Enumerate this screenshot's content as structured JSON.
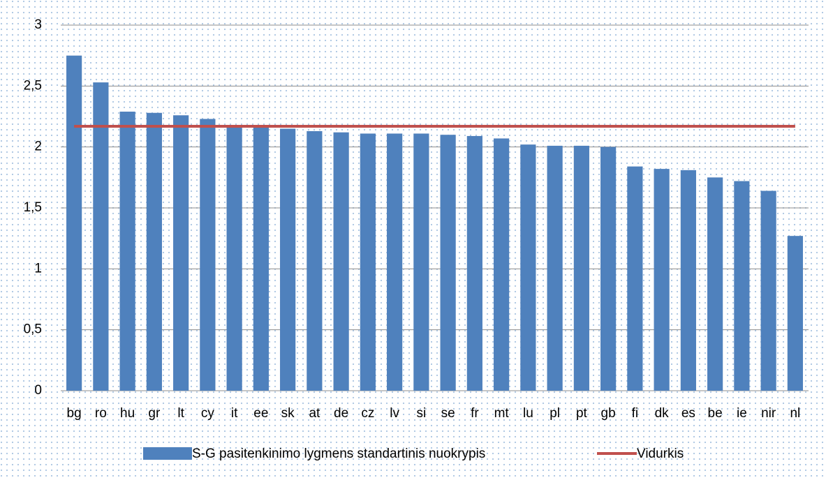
{
  "chart_data": {
    "type": "bar",
    "categories": [
      "bg",
      "ro",
      "hu",
      "gr",
      "lt",
      "cy",
      "it",
      "ee",
      "sk",
      "at",
      "de",
      "cz",
      "lv",
      "si",
      "se",
      "fr",
      "mt",
      "lu",
      "pl",
      "pt",
      "gb",
      "fi",
      "dk",
      "es",
      "be",
      "ie",
      "nir",
      "nl"
    ],
    "series": [
      {
        "name": "S-G pasitenkinimo lygmens standartinis nuokrypis",
        "type": "bar",
        "color": "#4f81bd",
        "values": [
          2.75,
          2.53,
          2.29,
          2.28,
          2.26,
          2.23,
          2.18,
          2.17,
          2.15,
          2.13,
          2.12,
          2.11,
          2.11,
          2.11,
          2.1,
          2.09,
          2.07,
          2.02,
          2.01,
          2.01,
          2.0,
          1.84,
          1.82,
          1.81,
          1.75,
          1.72,
          1.64,
          1.27
        ]
      },
      {
        "name": "Vidurkis",
        "type": "line",
        "color": "#c0504d",
        "values": [
          2.17,
          2.17,
          2.17,
          2.17,
          2.17,
          2.17,
          2.17,
          2.17,
          2.17,
          2.17,
          2.17,
          2.17,
          2.17,
          2.17,
          2.17,
          2.17,
          2.17,
          2.17,
          2.17,
          2.17,
          2.17,
          2.17,
          2.17,
          2.17,
          2.17,
          2.17,
          2.17,
          2.17
        ]
      }
    ],
    "ylim": [
      0,
      3
    ],
    "yticks": [
      {
        "value": 0,
        "label": "0"
      },
      {
        "value": 0.5,
        "label": "0,5"
      },
      {
        "value": 1,
        "label": "1"
      },
      {
        "value": 1.5,
        "label": "1,5"
      },
      {
        "value": 2,
        "label": "2"
      },
      {
        "value": 2.5,
        "label": "2,5"
      },
      {
        "value": 3,
        "label": "3"
      }
    ],
    "grid": true,
    "legend": "bottom"
  }
}
